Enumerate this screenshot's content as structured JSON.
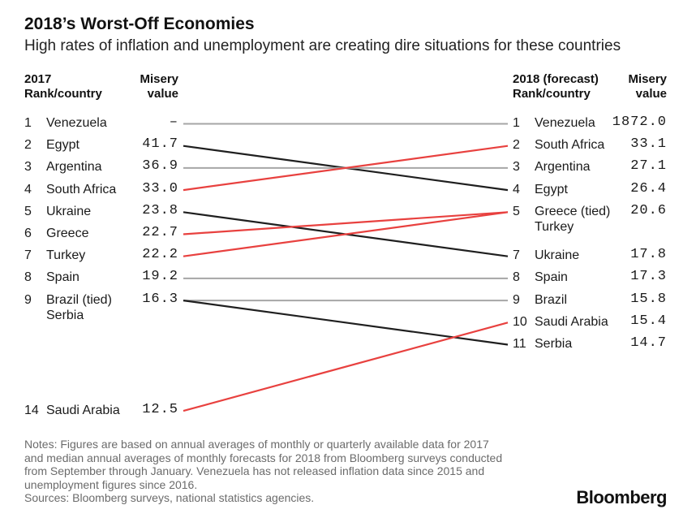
{
  "header": {
    "title": "2018’s Worst-Off Economies",
    "subtitle": "High rates of inflation and unemployment are creating dire situations for these countries"
  },
  "columns": {
    "left_rank_line1": "2017",
    "left_rank_line2": "Rank/country",
    "left_value_line1": "Misery",
    "left_value_line2": "value",
    "right_rank_line1": "2018 (forecast)",
    "right_rank_line2": "Rank/country",
    "right_value_line1": "Misery",
    "right_value_line2": "value"
  },
  "colors": {
    "gray": "#a6a6a6",
    "black": "#1f1f1f",
    "red": "#e8413f"
  },
  "chart_data": {
    "type": "slope",
    "title": "2018’s Worst-Off Economies",
    "subtitle": "High rates of inflation and unemployment are creating dire situations for these countries",
    "left": [
      {
        "rank": "1",
        "country": [
          "Venezuela"
        ],
        "value": "–"
      },
      {
        "rank": "2",
        "country": [
          "Egypt"
        ],
        "value": "41.7"
      },
      {
        "rank": "3",
        "country": [
          "Argentina"
        ],
        "value": "36.9"
      },
      {
        "rank": "4",
        "country": [
          "South Africa"
        ],
        "value": "33.0"
      },
      {
        "rank": "5",
        "country": [
          "Ukraine"
        ],
        "value": "23.8"
      },
      {
        "rank": "6",
        "country": [
          "Greece"
        ],
        "value": "22.7"
      },
      {
        "rank": "7",
        "country": [
          "Turkey"
        ],
        "value": "22.2"
      },
      {
        "rank": "8",
        "country": [
          "Spain"
        ],
        "value": "19.2"
      },
      {
        "rank": "9",
        "country": [
          "Brazil (tied)",
          "Serbia"
        ],
        "value": "16.3"
      },
      {
        "rank": "14",
        "country": [
          "Saudi Arabia"
        ],
        "value": "12.5"
      }
    ],
    "right": [
      {
        "rank": "1",
        "country": [
          "Venezuela"
        ],
        "value": "1872.0"
      },
      {
        "rank": "2",
        "country": [
          "South Africa"
        ],
        "value": "33.1"
      },
      {
        "rank": "3",
        "country": [
          "Argentina"
        ],
        "value": "27.1"
      },
      {
        "rank": "4",
        "country": [
          "Egypt"
        ],
        "value": "26.4"
      },
      {
        "rank": "5",
        "country": [
          "Greece (tied)",
          "Turkey"
        ],
        "value": "20.6"
      },
      {
        "rank": "7",
        "country": [
          "Ukraine"
        ],
        "value": "17.8"
      },
      {
        "rank": "8",
        "country": [
          "Spain"
        ],
        "value": "17.3"
      },
      {
        "rank": "9",
        "country": [
          "Brazil"
        ],
        "value": "15.8"
      },
      {
        "rank": "10",
        "country": [
          "Saudi Arabia"
        ],
        "value": "15.4"
      },
      {
        "rank": "11",
        "country": [
          "Serbia"
        ],
        "value": "14.7"
      }
    ],
    "links": [
      {
        "country": "Venezuela",
        "from_rank": 1,
        "to_rank": 1,
        "color": "gray"
      },
      {
        "country": "Egypt",
        "from_rank": 2,
        "to_rank": 4,
        "color": "black"
      },
      {
        "country": "Argentina",
        "from_rank": 3,
        "to_rank": 3,
        "color": "gray"
      },
      {
        "country": "South Africa",
        "from_rank": 4,
        "to_rank": 2,
        "color": "red"
      },
      {
        "country": "Ukraine",
        "from_rank": 5,
        "to_rank": 7,
        "color": "black"
      },
      {
        "country": "Greece",
        "from_rank": 6,
        "to_rank": 5,
        "color": "red"
      },
      {
        "country": "Turkey",
        "from_rank": 7,
        "to_rank": 5,
        "color": "red"
      },
      {
        "country": "Spain",
        "from_rank": 8,
        "to_rank": 8,
        "color": "gray"
      },
      {
        "country": "Brazil",
        "from_rank": 9,
        "to_rank": 9,
        "color": "gray"
      },
      {
        "country": "Serbia",
        "from_rank": 9,
        "to_rank": 11,
        "color": "black"
      },
      {
        "country": "Saudi Arabia",
        "from_rank": 14,
        "to_rank": 10,
        "color": "red"
      }
    ]
  },
  "footer": {
    "notes": [
      "Notes: Figures are based on annual averages of monthly or quarterly available data for 2017",
      "and median annual averages of monthly forecasts for 2018 from Bloomberg surveys conducted",
      "from September through January. Venezuela has not released inflation data since 2015 and",
      "unemployment figures since 2016.",
      "Sources: Bloomberg surveys, national statistics agencies."
    ],
    "brand": "Bloomberg"
  }
}
